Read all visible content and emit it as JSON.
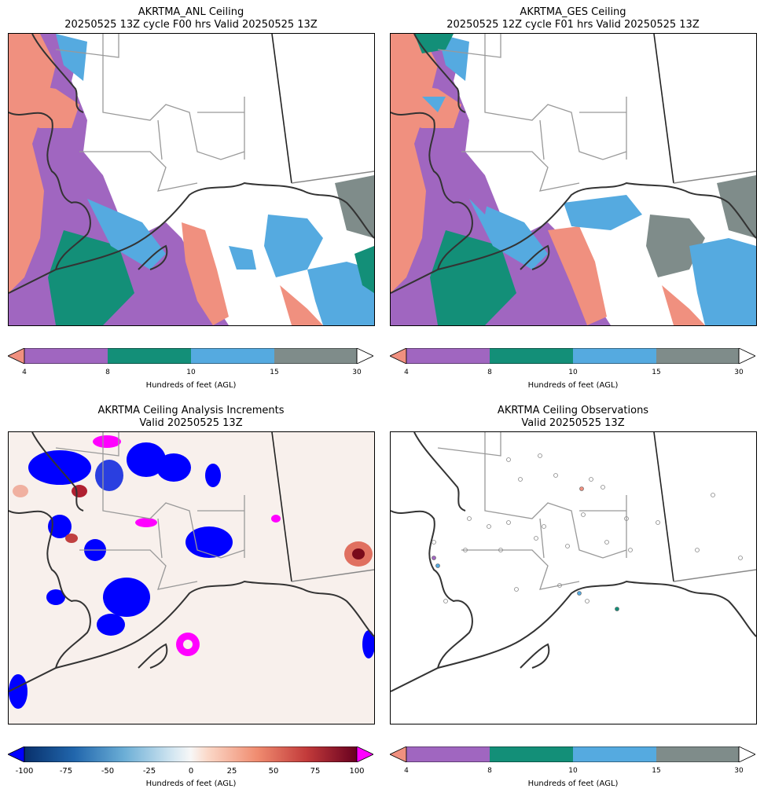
{
  "panels": [
    {
      "title1": "AKRTMA_ANL Ceiling",
      "title2": "20250525 13Z cycle F00 hrs Valid 20250525 13Z"
    },
    {
      "title1": "AKRTMA_GES Ceiling",
      "title2": "20250525 12Z cycle F01 hrs Valid 20250525 13Z"
    },
    {
      "title1": "AKRTMA Ceiling Analysis Increments",
      "title2": "Valid 20250525 13Z"
    },
    {
      "title1": "AKRTMA Ceiling Observations",
      "title2": "Valid 20250525 13Z"
    }
  ],
  "ceiling_colorbar": {
    "label": "Hundreds of feet (AGL)",
    "ticks": [
      "4",
      "8",
      "10",
      "15",
      "30"
    ],
    "colors": {
      "under": "#f0907f",
      "b1": "#a066c0",
      "b2": "#138f78",
      "b3": "#55aae0",
      "b4": "#7f8c8a",
      "over": "#ffffff"
    }
  },
  "increment_colorbar": {
    "label": "Hundreds of feet (AGL)",
    "ticks": [
      "-100",
      "-75",
      "-50",
      "-25",
      "0",
      "25",
      "50",
      "75",
      "100"
    ],
    "colors": {
      "under": "#0000ff",
      "over": "#ff00ff"
    }
  }
}
